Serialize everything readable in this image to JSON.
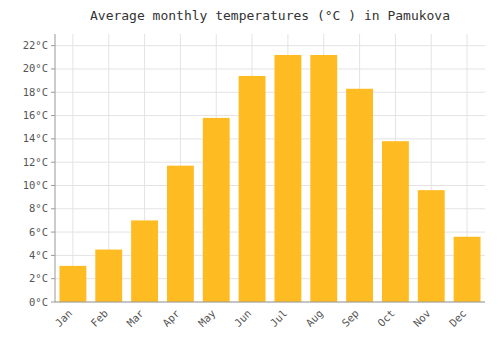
{
  "chart_data": {
    "type": "bar",
    "title": "Average monthly temperatures (°C ) in Pamukova",
    "categories": [
      "Jan",
      "Feb",
      "Mar",
      "Apr",
      "May",
      "Jun",
      "Jul",
      "Aug",
      "Sep",
      "Oct",
      "Nov",
      "Dec"
    ],
    "values": [
      3.1,
      4.5,
      7.0,
      11.7,
      15.8,
      19.4,
      21.2,
      21.2,
      18.3,
      13.8,
      9.6,
      5.6
    ],
    "color": "#FFBB22",
    "ylim": [
      0,
      23
    ],
    "yticks": [
      {
        "value": 0,
        "label": "0°C"
      },
      {
        "value": 2,
        "label": "2°C"
      },
      {
        "value": 4,
        "label": "4°C"
      },
      {
        "value": 6,
        "label": "6°C"
      },
      {
        "value": 8,
        "label": "8°C"
      },
      {
        "value": 10,
        "label": "10°C"
      },
      {
        "value": 12,
        "label": "12°C"
      },
      {
        "value": 14,
        "label": "14°C"
      },
      {
        "value": 16,
        "label": "16°C"
      },
      {
        "value": 18,
        "label": "18°C"
      },
      {
        "value": 20,
        "label": "20°C"
      },
      {
        "value": 22,
        "label": "22°C"
      }
    ],
    "grid": true
  }
}
